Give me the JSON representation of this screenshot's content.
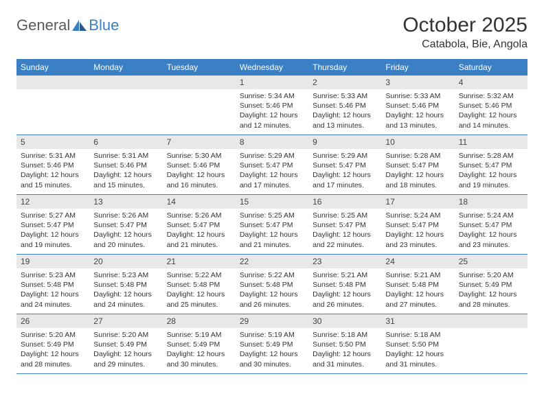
{
  "logo": {
    "text1": "General",
    "text2": "Blue"
  },
  "title": "October 2025",
  "location": "Catabola, Bie, Angola",
  "colors": {
    "header_bg": "#3b7fc4",
    "header_text": "#ffffff",
    "daynum_bg": "#e8e8e8",
    "border": "#3b7fc4",
    "body_text": "#333333"
  },
  "day_names": [
    "Sunday",
    "Monday",
    "Tuesday",
    "Wednesday",
    "Thursday",
    "Friday",
    "Saturday"
  ],
  "weeks": [
    [
      null,
      null,
      null,
      {
        "n": "1",
        "sr": "5:34 AM",
        "ss": "5:46 PM",
        "dl": "12 hours and 12 minutes."
      },
      {
        "n": "2",
        "sr": "5:33 AM",
        "ss": "5:46 PM",
        "dl": "12 hours and 13 minutes."
      },
      {
        "n": "3",
        "sr": "5:33 AM",
        "ss": "5:46 PM",
        "dl": "12 hours and 13 minutes."
      },
      {
        "n": "4",
        "sr": "5:32 AM",
        "ss": "5:46 PM",
        "dl": "12 hours and 14 minutes."
      }
    ],
    [
      {
        "n": "5",
        "sr": "5:31 AM",
        "ss": "5:46 PM",
        "dl": "12 hours and 15 minutes."
      },
      {
        "n": "6",
        "sr": "5:31 AM",
        "ss": "5:46 PM",
        "dl": "12 hours and 15 minutes."
      },
      {
        "n": "7",
        "sr": "5:30 AM",
        "ss": "5:46 PM",
        "dl": "12 hours and 16 minutes."
      },
      {
        "n": "8",
        "sr": "5:29 AM",
        "ss": "5:47 PM",
        "dl": "12 hours and 17 minutes."
      },
      {
        "n": "9",
        "sr": "5:29 AM",
        "ss": "5:47 PM",
        "dl": "12 hours and 17 minutes."
      },
      {
        "n": "10",
        "sr": "5:28 AM",
        "ss": "5:47 PM",
        "dl": "12 hours and 18 minutes."
      },
      {
        "n": "11",
        "sr": "5:28 AM",
        "ss": "5:47 PM",
        "dl": "12 hours and 19 minutes."
      }
    ],
    [
      {
        "n": "12",
        "sr": "5:27 AM",
        "ss": "5:47 PM",
        "dl": "12 hours and 19 minutes."
      },
      {
        "n": "13",
        "sr": "5:26 AM",
        "ss": "5:47 PM",
        "dl": "12 hours and 20 minutes."
      },
      {
        "n": "14",
        "sr": "5:26 AM",
        "ss": "5:47 PM",
        "dl": "12 hours and 21 minutes."
      },
      {
        "n": "15",
        "sr": "5:25 AM",
        "ss": "5:47 PM",
        "dl": "12 hours and 21 minutes."
      },
      {
        "n": "16",
        "sr": "5:25 AM",
        "ss": "5:47 PM",
        "dl": "12 hours and 22 minutes."
      },
      {
        "n": "17",
        "sr": "5:24 AM",
        "ss": "5:47 PM",
        "dl": "12 hours and 23 minutes."
      },
      {
        "n": "18",
        "sr": "5:24 AM",
        "ss": "5:47 PM",
        "dl": "12 hours and 23 minutes."
      }
    ],
    [
      {
        "n": "19",
        "sr": "5:23 AM",
        "ss": "5:48 PM",
        "dl": "12 hours and 24 minutes."
      },
      {
        "n": "20",
        "sr": "5:23 AM",
        "ss": "5:48 PM",
        "dl": "12 hours and 24 minutes."
      },
      {
        "n": "21",
        "sr": "5:22 AM",
        "ss": "5:48 PM",
        "dl": "12 hours and 25 minutes."
      },
      {
        "n": "22",
        "sr": "5:22 AM",
        "ss": "5:48 PM",
        "dl": "12 hours and 26 minutes."
      },
      {
        "n": "23",
        "sr": "5:21 AM",
        "ss": "5:48 PM",
        "dl": "12 hours and 26 minutes."
      },
      {
        "n": "24",
        "sr": "5:21 AM",
        "ss": "5:48 PM",
        "dl": "12 hours and 27 minutes."
      },
      {
        "n": "25",
        "sr": "5:20 AM",
        "ss": "5:49 PM",
        "dl": "12 hours and 28 minutes."
      }
    ],
    [
      {
        "n": "26",
        "sr": "5:20 AM",
        "ss": "5:49 PM",
        "dl": "12 hours and 28 minutes."
      },
      {
        "n": "27",
        "sr": "5:20 AM",
        "ss": "5:49 PM",
        "dl": "12 hours and 29 minutes."
      },
      {
        "n": "28",
        "sr": "5:19 AM",
        "ss": "5:49 PM",
        "dl": "12 hours and 30 minutes."
      },
      {
        "n": "29",
        "sr": "5:19 AM",
        "ss": "5:49 PM",
        "dl": "12 hours and 30 minutes."
      },
      {
        "n": "30",
        "sr": "5:18 AM",
        "ss": "5:50 PM",
        "dl": "12 hours and 31 minutes."
      },
      {
        "n": "31",
        "sr": "5:18 AM",
        "ss": "5:50 PM",
        "dl": "12 hours and 31 minutes."
      },
      null
    ]
  ],
  "labels": {
    "sunrise": "Sunrise:",
    "sunset": "Sunset:",
    "daylight": "Daylight:"
  }
}
